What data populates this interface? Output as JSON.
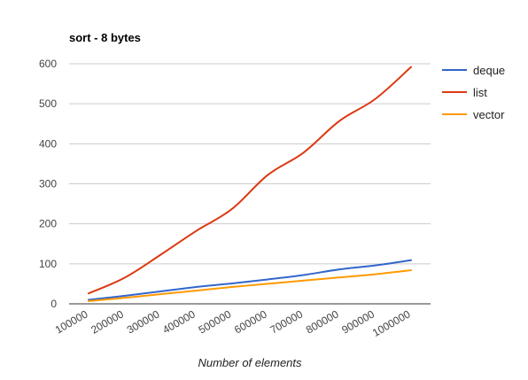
{
  "chart_data": {
    "type": "line",
    "title": "sort - 8 bytes",
    "xlabel": "Number of elements",
    "ylabel": "",
    "ylim": [
      0,
      600
    ],
    "yticks": [
      0,
      100,
      200,
      300,
      400,
      500,
      600
    ],
    "categories": [
      "100000",
      "200000",
      "300000",
      "400000",
      "500000",
      "600000",
      "700000",
      "800000",
      "900000",
      "1000000"
    ],
    "grid": true,
    "legend_position": "right",
    "series": [
      {
        "name": "deque",
        "color": "#3366cc",
        "values": [
          10,
          20,
          31,
          42,
          51,
          61,
          72,
          86,
          96,
          109
        ]
      },
      {
        "name": "list",
        "color": "#dc3912",
        "values": [
          26,
          65,
          122,
          182,
          237,
          322,
          378,
          457,
          512,
          592
        ]
      },
      {
        "name": "vector",
        "color": "#ff9900",
        "values": [
          7,
          15,
          24,
          33,
          42,
          50,
          58,
          66,
          74,
          84
        ]
      }
    ]
  }
}
